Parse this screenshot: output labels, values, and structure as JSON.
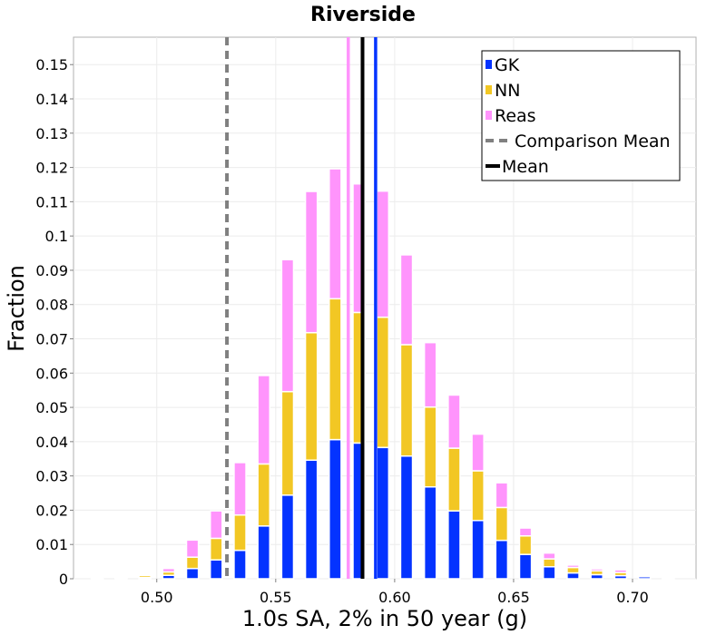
{
  "chart_data": {
    "type": "bar",
    "stacked": true,
    "title": "Riverside",
    "xlabel": "1.0s SA, 2% in 50 year (g)",
    "ylabel": "Fraction",
    "xlim": [
      0.465,
      0.7267
    ],
    "ylim": [
      0,
      0.158
    ],
    "bin_width": 0.005,
    "x_ticks": [
      0.5,
      0.55,
      0.6,
      0.65,
      0.7
    ],
    "x_tick_labels": [
      "0.50",
      "0.55",
      "0.60",
      "0.65",
      "0.70"
    ],
    "y_ticks": [
      0,
      0.01,
      0.02,
      0.03,
      0.04,
      0.05,
      0.06,
      0.07,
      0.08,
      0.09,
      0.1,
      0.11,
      0.12,
      0.13,
      0.14,
      0.15
    ],
    "y_tick_labels": [
      "0",
      "0.01",
      "0.02",
      "0.03",
      "0.04",
      "0.05",
      "0.06",
      "0.07",
      "0.08",
      "0.09",
      "0.1",
      "0.11",
      "0.12",
      "0.13",
      "0.14",
      "0.15"
    ],
    "x": [
      0.475,
      0.485,
      0.495,
      0.505,
      0.515,
      0.525,
      0.535,
      0.545,
      0.555,
      0.565,
      0.575,
      0.585,
      0.595,
      0.605,
      0.615,
      0.625,
      0.635,
      0.645,
      0.655,
      0.665,
      0.675,
      0.685,
      0.695,
      0.705,
      0.715
    ],
    "series": [
      {
        "name": "GK",
        "color": "#0433ff",
        "values": [
          0.0001,
          0.0002,
          0.0004,
          0.001,
          0.003,
          0.0055,
          0.0083,
          0.0154,
          0.0244,
          0.0346,
          0.0406,
          0.0396,
          0.0383,
          0.0358,
          0.0268,
          0.0198,
          0.017,
          0.0112,
          0.0071,
          0.0035,
          0.0017,
          0.0012,
          0.0009,
          0.0006,
          0.0002
        ]
      },
      {
        "name": "NN",
        "color": "#f2c724",
        "values": [
          0.0001,
          0.0002,
          0.0006,
          0.001,
          0.0033,
          0.0063,
          0.0103,
          0.0181,
          0.0302,
          0.0372,
          0.0411,
          0.0381,
          0.038,
          0.0325,
          0.0233,
          0.0183,
          0.0145,
          0.0096,
          0.0054,
          0.0023,
          0.0016,
          0.0011,
          0.0009,
          0.0003,
          0.0001
        ]
      },
      {
        "name": "Reas",
        "color": "#ff94fc",
        "values": [
          0.0002,
          0.0002,
          0.0003,
          0.001,
          0.005,
          0.008,
          0.0153,
          0.0258,
          0.0385,
          0.0412,
          0.0379,
          0.0375,
          0.0368,
          0.0262,
          0.0188,
          0.0155,
          0.0107,
          0.0072,
          0.0023,
          0.0017,
          0.0007,
          0.0006,
          0.0008,
          0.0003,
          0.0001
        ]
      }
    ],
    "vlines": [
      {
        "name": "Comparison Mean",
        "x": 0.5295,
        "color": "#808080",
        "style": "dashed"
      },
      {
        "name": "Mean",
        "x": 0.5865,
        "color": "#000000",
        "style": "solid"
      },
      {
        "x": 0.5805,
        "color": "#ff94fc",
        "style": "solid"
      },
      {
        "x": 0.592,
        "color": "#0433ff",
        "style": "solid"
      }
    ],
    "legend_position": "top-right",
    "grid": true,
    "legend": [
      {
        "label": "GK",
        "kind": "patch",
        "color": "#0433ff"
      },
      {
        "label": "NN",
        "kind": "patch",
        "color": "#f2c724"
      },
      {
        "label": "Reas",
        "kind": "patch",
        "color": "#ff94fc"
      },
      {
        "label": "Comparison Mean",
        "kind": "dashed",
        "color": "#808080"
      },
      {
        "label": "Mean",
        "kind": "solid",
        "color": "#000000"
      }
    ]
  }
}
